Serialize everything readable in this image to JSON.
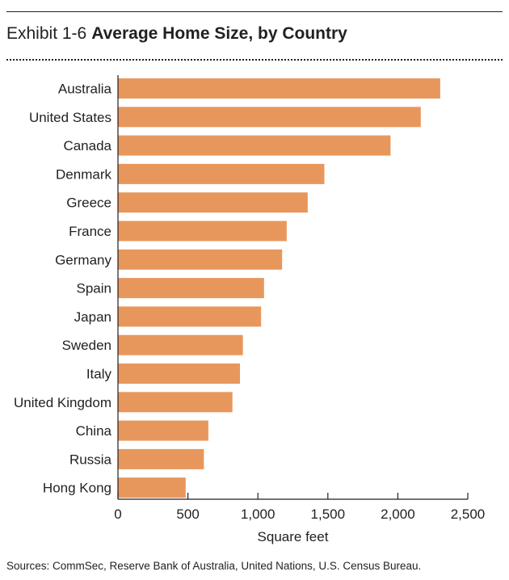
{
  "header": {
    "exhibit": "Exhibit 1-6",
    "title": "Average Home Size, by Country"
  },
  "footer": {
    "sources": "Sources: CommSec, Reserve Bank of Australia, United Nations, U.S. Census Bureau."
  },
  "colors": {
    "bar": "#e8975c",
    "text": "#231f20"
  },
  "chart_data": {
    "type": "bar",
    "orientation": "horizontal",
    "title": "Average Home Size, by Country",
    "xlabel": "Square feet",
    "ylabel": "",
    "categories": [
      "Australia",
      "United States",
      "Canada",
      "Denmark",
      "Greece",
      "France",
      "Germany",
      "Spain",
      "Japan",
      "Sweden",
      "Italy",
      "United Kingdom",
      "China",
      "Russia",
      "Hong Kong"
    ],
    "values": [
      2303,
      2164,
      1948,
      1475,
      1356,
      1206,
      1173,
      1044,
      1023,
      893,
      872,
      818,
      646,
      614,
      484
    ],
    "xlim": [
      0,
      2500
    ],
    "xticks": [
      0,
      500,
      1000,
      1500,
      2000,
      2500
    ],
    "xtick_labels": [
      "0",
      "500",
      "1,000",
      "1,500",
      "2,000",
      "2,500"
    ],
    "grid": false,
    "legend": "none"
  }
}
